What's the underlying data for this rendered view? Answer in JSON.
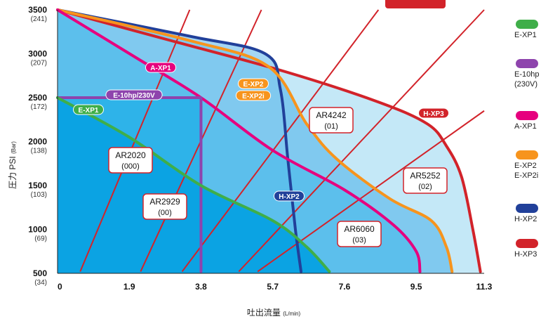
{
  "chart_data": {
    "type": "area",
    "xlabel_main": "吐出流量",
    "xlabel_unit": "(L/min)",
    "ylabel_main": "圧力 PSI",
    "ylabel_unit": "(Bar)",
    "x_ticks": [
      "0",
      "1.9",
      "3.8",
      "5.7",
      "7.6",
      "9.5",
      "11.3"
    ],
    "x_tick_values": [
      0,
      1.9,
      3.8,
      5.7,
      7.6,
      9.5,
      11.3
    ],
    "y_ticks": [
      {
        "psi": "500",
        "bar": "(34)"
      },
      {
        "psi": "1000",
        "bar": "(69)"
      },
      {
        "psi": "1500",
        "bar": "(103)"
      },
      {
        "psi": "2000",
        "bar": "(138)"
      },
      {
        "psi": "2500",
        "bar": "(172)"
      },
      {
        "psi": "3000",
        "bar": "(207)"
      },
      {
        "psi": "3500",
        "bar": "(241)"
      }
    ],
    "y_tick_values": [
      500,
      1000,
      1500,
      2000,
      2500,
      3000,
      3500
    ],
    "xlim": [
      0,
      11.3
    ],
    "ylim": [
      500,
      3500
    ],
    "series": [
      {
        "name": "H-XP3",
        "color": "#d2232a",
        "fill": "#c4e8f7",
        "x": [
          0,
          3.0,
          6.0,
          8.5,
          9.8,
          10.3,
          10.7,
          11.0,
          11.2
        ],
        "y": [
          3500,
          3150,
          2800,
          2450,
          2200,
          1950,
          1600,
          1000,
          520
        ]
      },
      {
        "name": "H-XP2",
        "color": "#21409a",
        "fill": "#a4d6f3",
        "x": [
          0,
          3.5,
          5.5,
          5.9,
          6.1,
          6.3,
          6.45
        ],
        "y": [
          3500,
          3200,
          3000,
          2600,
          1800,
          1000,
          520
        ]
      },
      {
        "name": "E-XP2 / E-XP2i",
        "color": "#f7941d",
        "fill": "#80c9ef",
        "x": [
          0,
          3.5,
          5.6,
          6.6,
          7.4,
          8.8,
          9.9,
          10.3,
          10.45
        ],
        "y": [
          3500,
          3150,
          2850,
          2200,
          1800,
          1350,
          1100,
          800,
          520
        ]
      },
      {
        "name": "A-XP1",
        "color": "#e6007e",
        "fill": "#5cbfec",
        "x": [
          0,
          2.1,
          3.8,
          5.7,
          7.6,
          8.9,
          9.5,
          9.6
        ],
        "y": [
          3500,
          2950,
          2500,
          1900,
          1450,
          1050,
          750,
          520
        ]
      },
      {
        "name": "E-10hp (230V)",
        "color": "#8e44ad",
        "fill": "#2eb3e9",
        "x": [
          0,
          3.8,
          3.8
        ],
        "y": [
          2500,
          2500,
          520
        ]
      },
      {
        "name": "E-XP1",
        "color": "#3fae49",
        "fill": "#0ba3e3",
        "x": [
          0,
          1.9,
          3.8,
          5.7,
          6.6,
          7.2
        ],
        "y": [
          2500,
          2050,
          1500,
          1100,
          800,
          520
        ]
      }
    ],
    "series_labels": [
      {
        "text": "A-XP1",
        "color": "#e6007e"
      },
      {
        "text": "E-10hp/230V",
        "color": "#8e44ad"
      },
      {
        "text": "E-XP1",
        "color": "#3fae49"
      },
      {
        "text": "E-XP2",
        "color": "#f7941d"
      },
      {
        "text": "E-XP2i",
        "color": "#f7941d"
      },
      {
        "text": "H-XP3",
        "color": "#d2232a"
      },
      {
        "text": "H-XP2",
        "color": "#21409a"
      }
    ],
    "nozzle_lines": [
      {
        "name": "AR2020",
        "code": "(000)",
        "x": [
          0.6,
          3.5
        ],
        "y": [
          520,
          3500
        ]
      },
      {
        "name": "AR2929",
        "code": "(00)",
        "x": [
          2.2,
          5.4
        ],
        "y": [
          520,
          3500
        ]
      },
      {
        "name": "AR4242",
        "code": "(01)",
        "x": [
          3.3,
          8.5
        ],
        "y": [
          520,
          3500
        ]
      },
      {
        "name": "AR5252",
        "code": "(02)",
        "x": [
          4.8,
          11.3
        ],
        "y": [
          520,
          3500
        ]
      },
      {
        "name": "AR6060",
        "code": "(03)",
        "x": [
          5.3,
          11.3
        ],
        "y": [
          520,
          2350
        ]
      }
    ]
  },
  "legend": [
    {
      "label": "E-XP1",
      "label2": "",
      "color": "#3fae49"
    },
    {
      "label": "E-10hp",
      "label2": "(230V)",
      "color": "#8e44ad"
    },
    {
      "label": "A-XP1",
      "label2": "",
      "color": "#e6007e"
    },
    {
      "label": "E-XP2",
      "label2": "E-XP2i",
      "color": "#f7941d"
    },
    {
      "label": "H-XP2",
      "label2": "",
      "color": "#21409a"
    },
    {
      "label": "H-XP3",
      "label2": "",
      "color": "#d2232a"
    }
  ]
}
